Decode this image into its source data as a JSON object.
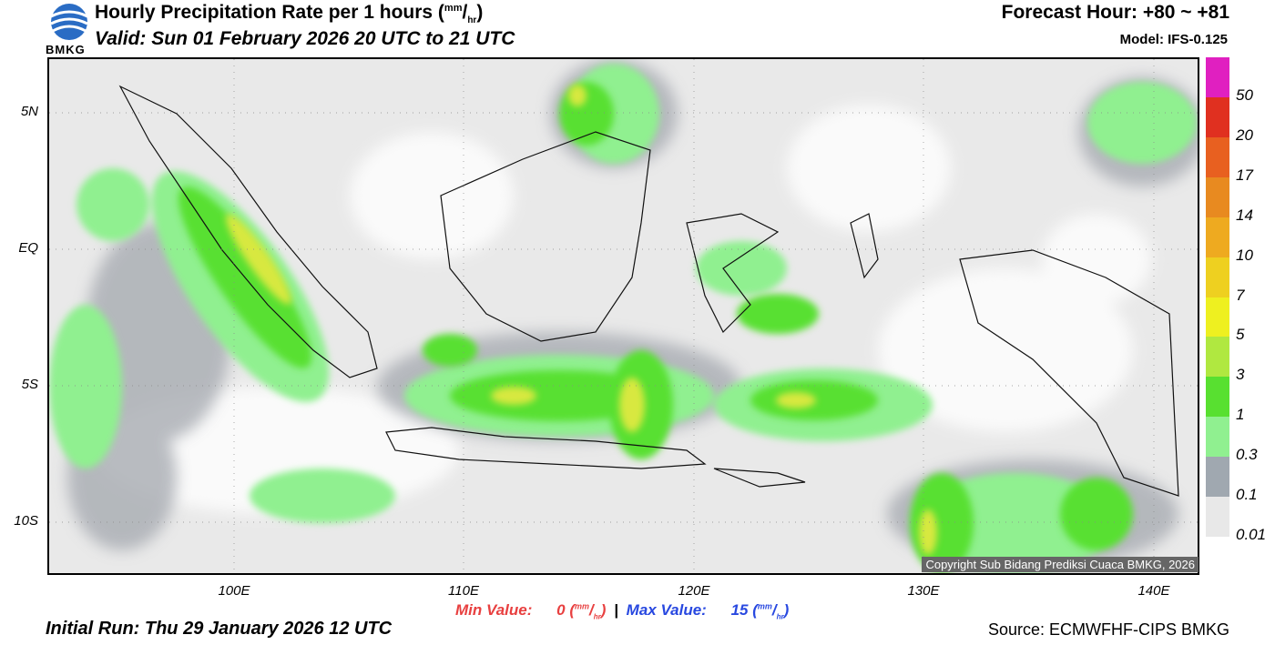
{
  "header": {
    "title": "Hourly Precipitation Rate per 1 hours",
    "title_unit_num": "mm",
    "title_unit_den": "hr",
    "valid": "Valid: Sun 01 February 2026 20 UTC to 21 UTC",
    "forecast_hour": "Forecast Hour: +80 ~ +81",
    "model": "Model: IFS-0.125"
  },
  "logo": {
    "text": "BMKG"
  },
  "map": {
    "lat_labels": [
      "5N",
      "EQ",
      "5S",
      "10S"
    ],
    "lon_labels": [
      "100E",
      "110E",
      "120E",
      "130E",
      "140E"
    ],
    "copyright": "Copyright Sub Bidang Prediksi Cuaca BMKG, 2026"
  },
  "colorbar": {
    "labels": [
      "50",
      "20",
      "17",
      "14",
      "10",
      "7",
      "5",
      "3",
      "1",
      "0.3",
      "0.1",
      "0.01"
    ],
    "colors": [
      "#e020c0",
      "#e03020",
      "#e86020",
      "#e88a20",
      "#eeaa20",
      "#eed020",
      "#eef020",
      "#b0e840",
      "#58e030",
      "#90f090",
      "#a0a8b0",
      "#e8e8e8"
    ]
  },
  "footer": {
    "min_label": "Min Value:",
    "min_value": "0",
    "separator": "|",
    "max_label": "Max Value:",
    "max_value": "15",
    "unit_num": "mm",
    "unit_den": "hr",
    "init_run": "Initial Run: Thu 29 January 2026 12 UTC",
    "source": "Source: ECMWFHF-CIPS BMKG"
  }
}
